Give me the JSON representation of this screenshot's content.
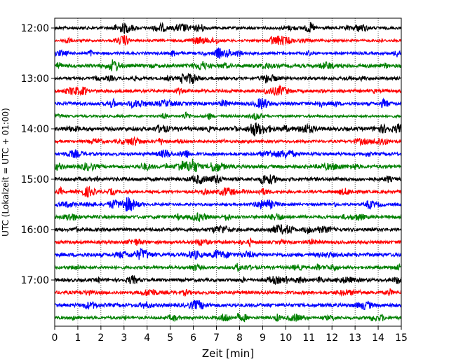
{
  "chart_data": {
    "type": "line",
    "xlabel": "Zeit  [min]",
    "ylabel": "UTC (Lokalzeit = UTC + 01:00)",
    "xlim": [
      0,
      15
    ],
    "x_ticks": [
      0,
      1,
      2,
      3,
      4,
      5,
      6,
      7,
      8,
      9,
      10,
      11,
      12,
      13,
      14,
      15
    ],
    "x_tick_labels": [
      "0",
      "1",
      "2",
      "3",
      "4",
      "5",
      "6",
      "7",
      "8",
      "9",
      "10",
      "11",
      "12",
      "13",
      "14",
      "15"
    ],
    "y_tick_labels": [
      "12:00",
      "13:00",
      "14:00",
      "15:00",
      "16:00",
      "17:00"
    ],
    "y_tick_traces": [
      0,
      4,
      8,
      12,
      16,
      20
    ],
    "trace_interval_min": 15,
    "grid": "vertical dotted at each minute",
    "colors": [
      "#000000",
      "#ff0000",
      "#0000ff",
      "#008000"
    ],
    "traces": [
      {
        "start": "12:00",
        "color": "#000000"
      },
      {
        "start": "12:15",
        "color": "#ff0000"
      },
      {
        "start": "12:30",
        "color": "#0000ff"
      },
      {
        "start": "12:45",
        "color": "#008000"
      },
      {
        "start": "13:00",
        "color": "#000000"
      },
      {
        "start": "13:15",
        "color": "#ff0000"
      },
      {
        "start": "13:30",
        "color": "#0000ff"
      },
      {
        "start": "13:45",
        "color": "#008000"
      },
      {
        "start": "14:00",
        "color": "#000000"
      },
      {
        "start": "14:15",
        "color": "#ff0000"
      },
      {
        "start": "14:30",
        "color": "#0000ff"
      },
      {
        "start": "14:45",
        "color": "#008000"
      },
      {
        "start": "15:00",
        "color": "#000000"
      },
      {
        "start": "15:15",
        "color": "#ff0000"
      },
      {
        "start": "15:30",
        "color": "#0000ff"
      },
      {
        "start": "15:45",
        "color": "#008000"
      },
      {
        "start": "16:00",
        "color": "#000000"
      },
      {
        "start": "16:15",
        "color": "#ff0000"
      },
      {
        "start": "16:30",
        "color": "#0000ff"
      },
      {
        "start": "16:45",
        "color": "#008000"
      },
      {
        "start": "17:00",
        "color": "#000000"
      },
      {
        "start": "17:15",
        "color": "#ff0000"
      },
      {
        "start": "17:30",
        "color": "#0000ff"
      },
      {
        "start": "17:45",
        "color": "#008000"
      }
    ]
  }
}
